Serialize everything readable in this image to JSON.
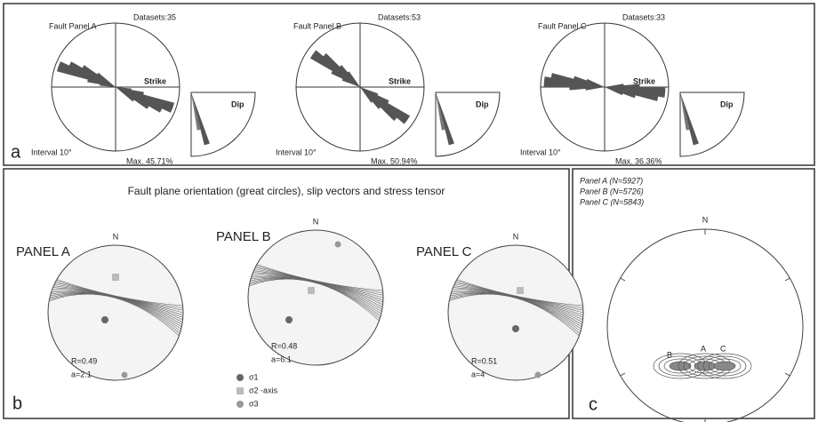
{
  "panel_a": {
    "label": "a",
    "roses": [
      {
        "title": "Fault Panel A",
        "datasets": "Datasets:35",
        "strike": "Strike",
        "dip": "Dip",
        "interval": "Interval 10°",
        "max": "Max. 45.71%"
      },
      {
        "title": "Fault Panel B",
        "datasets": "Datasets:53",
        "strike": "Strike",
        "dip": "Dip",
        "interval": "Interval 10°",
        "max": "Max. 50.94%"
      },
      {
        "title": "Fault Panel C",
        "datasets": "Datasets:33",
        "strike": "Strike",
        "dip": "Dip",
        "interval": "Interval 10°",
        "max": "Max. 36.36%"
      }
    ]
  },
  "panel_b": {
    "label": "b",
    "title": "Fault plane orientation (great circles), slip vectors and stress tensor",
    "nets": [
      {
        "name": "PANEL A",
        "north": "N",
        "r": "R=0.49",
        "a": "a=2.1"
      },
      {
        "name": "PANEL B",
        "north": "N",
        "r": "R=0.48",
        "a": "a=6.1"
      },
      {
        "name": "PANEL C",
        "north": "N",
        "r": "R=0.51",
        "a": "a=4"
      }
    ],
    "legend": [
      "σ1",
      "σ2 -axis",
      "σ3"
    ]
  },
  "panel_c": {
    "label": "c",
    "north": "N",
    "entries": [
      "Panel A (N=5927)",
      "Panel B (N=5726)",
      "Panel C (N=5843)"
    ],
    "contour_labels": [
      "A",
      "B",
      "C"
    ]
  }
}
